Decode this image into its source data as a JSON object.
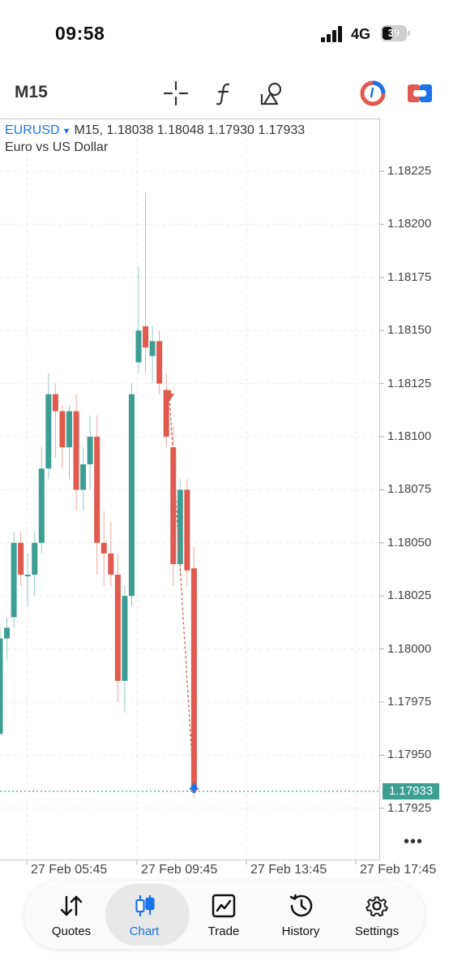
{
  "status_bar": {
    "time": "09:58",
    "network": "4G",
    "battery": "39"
  },
  "toolbar": {
    "timeframe": "M15",
    "icons": [
      "crosshair-icon",
      "indicator-icon",
      "objects-icon",
      "trade-toggle-icon",
      "one-click-trading-icon"
    ]
  },
  "chart": {
    "symbol": "EURUSD",
    "ohlc_text": "M15, 1.18038 1.18048 1.17930 1.17933",
    "description": "Euro vs US Dollar",
    "current_price": "1.17933",
    "more": "•••",
    "price_labels": [
      "1.18225",
      "1.18200",
      "1.18175",
      "1.18150",
      "1.18125",
      "1.18100",
      "1.18075",
      "1.18050",
      "1.18025",
      "1.18000",
      "1.17975",
      "1.17950",
      "1.17925"
    ],
    "time_labels": [
      "27 Feb 05:45",
      "27 Feb 09:45",
      "27 Feb 13:45",
      "27 Feb 17:45"
    ]
  },
  "colors": {
    "bull": "#3d9e93",
    "bear": "#e05a4f",
    "accent": "#1a73e8",
    "grid": "#ececec"
  },
  "chart_data": {
    "type": "candlestick",
    "symbol": "EURUSD",
    "timeframe": "M15",
    "ylim": [
      1.179,
      1.1824
    ],
    "candles": [
      {
        "o": 1.1796,
        "h": 1.1801,
        "l": 1.1796,
        "c": 1.18005
      },
      {
        "o": 1.18005,
        "h": 1.18015,
        "l": 1.17995,
        "c": 1.1801
      },
      {
        "o": 1.18015,
        "h": 1.18055,
        "l": 1.1801,
        "c": 1.1805
      },
      {
        "o": 1.1805,
        "h": 1.18055,
        "l": 1.1803,
        "c": 1.18035
      },
      {
        "o": 1.18035,
        "h": 1.18045,
        "l": 1.1802,
        "c": 1.18035
      },
      {
        "o": 1.18035,
        "h": 1.18055,
        "l": 1.18025,
        "c": 1.1805
      },
      {
        "o": 1.1805,
        "h": 1.18095,
        "l": 1.18045,
        "c": 1.18085
      },
      {
        "o": 1.18085,
        "h": 1.1813,
        "l": 1.1808,
        "c": 1.1812
      },
      {
        "o": 1.1812,
        "h": 1.18125,
        "l": 1.1809,
        "c": 1.18112
      },
      {
        "o": 1.18112,
        "h": 1.18115,
        "l": 1.18085,
        "c": 1.18095
      },
      {
        "o": 1.18095,
        "h": 1.18115,
        "l": 1.1808,
        "c": 1.18112
      },
      {
        "o": 1.18112,
        "h": 1.1812,
        "l": 1.18065,
        "c": 1.18075
      },
      {
        "o": 1.18075,
        "h": 1.18095,
        "l": 1.18065,
        "c": 1.18087
      },
      {
        "o": 1.18087,
        "h": 1.1811,
        "l": 1.18075,
        "c": 1.181
      },
      {
        "o": 1.181,
        "h": 1.1811,
        "l": 1.18035,
        "c": 1.1805
      },
      {
        "o": 1.1805,
        "h": 1.18065,
        "l": 1.1803,
        "c": 1.18045
      },
      {
        "o": 1.18045,
        "h": 1.1806,
        "l": 1.1803,
        "c": 1.18035
      },
      {
        "o": 1.18035,
        "h": 1.18045,
        "l": 1.17975,
        "c": 1.17985
      },
      {
        "o": 1.17985,
        "h": 1.1803,
        "l": 1.1797,
        "c": 1.18025
      },
      {
        "o": 1.18025,
        "h": 1.18125,
        "l": 1.1802,
        "c": 1.1812
      },
      {
        "o": 1.18135,
        "h": 1.1818,
        "l": 1.1813,
        "c": 1.1815
      },
      {
        "o": 1.18152,
        "h": 1.18215,
        "l": 1.1813,
        "c": 1.18142
      },
      {
        "o": 1.18138,
        "h": 1.18152,
        "l": 1.18125,
        "c": 1.18145
      },
      {
        "o": 1.18145,
        "h": 1.1815,
        "l": 1.1812,
        "c": 1.18125
      },
      {
        "o": 1.18122,
        "h": 1.1813,
        "l": 1.18095,
        "c": 1.181
      },
      {
        "o": 1.18095,
        "h": 1.18105,
        "l": 1.1803,
        "c": 1.1804
      },
      {
        "o": 1.1804,
        "h": 1.1808,
        "l": 1.18035,
        "c": 1.18075
      },
      {
        "o": 1.18075,
        "h": 1.1808,
        "l": 1.1803,
        "c": 1.18037
      },
      {
        "o": 1.18038,
        "h": 1.18048,
        "l": 1.1793,
        "c": 1.17933
      }
    ],
    "trade_markers": [
      {
        "type": "sell",
        "candle": 24,
        "price": 1.18118
      },
      {
        "type": "buy",
        "candle": 28,
        "price": 1.17933
      }
    ],
    "current_price": 1.17933,
    "price_axis": [
      "1.18225",
      "1.18200",
      "1.18175",
      "1.18150",
      "1.18125",
      "1.18100",
      "1.18075",
      "1.18050",
      "1.18025",
      "1.18000",
      "1.17975",
      "1.17950",
      "1.17925"
    ],
    "time_axis": [
      "27 Feb 05:45",
      "27 Feb 09:45",
      "27 Feb 13:45",
      "27 Feb 17:45"
    ],
    "grid": true
  },
  "nav": {
    "items": [
      {
        "label": "Quotes",
        "icon": "quotes-arrows-icon"
      },
      {
        "label": "Chart",
        "icon": "candlestick-icon"
      },
      {
        "label": "Trade",
        "icon": "trade-chart-icon"
      },
      {
        "label": "History",
        "icon": "history-clock-icon"
      },
      {
        "label": "Settings",
        "icon": "gear-icon"
      }
    ],
    "active": "Chart"
  }
}
